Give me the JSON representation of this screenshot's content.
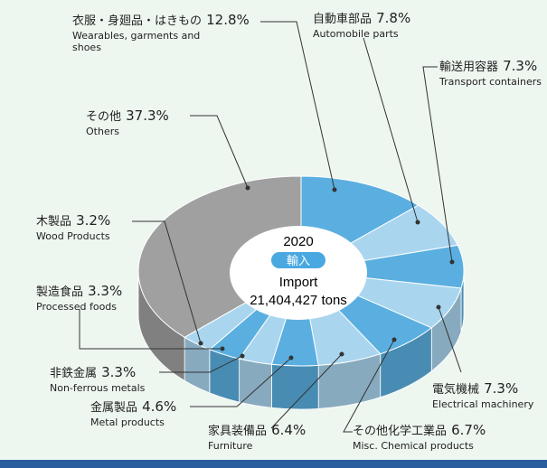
{
  "chart_data": {
    "type": "pie3d",
    "center_year": "2020",
    "center_badge": "輸入",
    "center_title": "Import",
    "center_total": "21,404,427 tons",
    "categories": [
      "衣服・身廻品・はきもの",
      "自動車部品",
      "輸送用容器",
      "電気機械",
      "その他化学工業品",
      "家具装備品",
      "金属製品",
      "非鉄金属",
      "製造食品",
      "木製品",
      "その他"
    ],
    "categories_en": [
      "Wearables, garments and shoes",
      "Automobile parts",
      "Transport containers",
      "Electrical machinery",
      "Misc. Chemical products",
      "Furniture",
      "Metal products",
      "Non-ferrous metals",
      "Processed foods",
      "Wood Products",
      "Others"
    ],
    "values": [
      12.8,
      7.8,
      7.3,
      7.3,
      6.7,
      6.4,
      4.6,
      3.3,
      3.3,
      3.2,
      37.3
    ],
    "value_labels": [
      "12.8%",
      "7.8%",
      "7.3%",
      "7.3%",
      "6.7%",
      "6.4%",
      "4.6%",
      "3.3%",
      "3.3%",
      "3.2%",
      "37.3%"
    ],
    "colors": [
      "#5aafe0",
      "#a9d5ef",
      "#5aafe0",
      "#a9d5ef",
      "#5aafe0",
      "#a9d5ef",
      "#5aafe0",
      "#a9d5ef",
      "#5aafe0",
      "#a9d5ef",
      "#a0a0a0"
    ]
  }
}
